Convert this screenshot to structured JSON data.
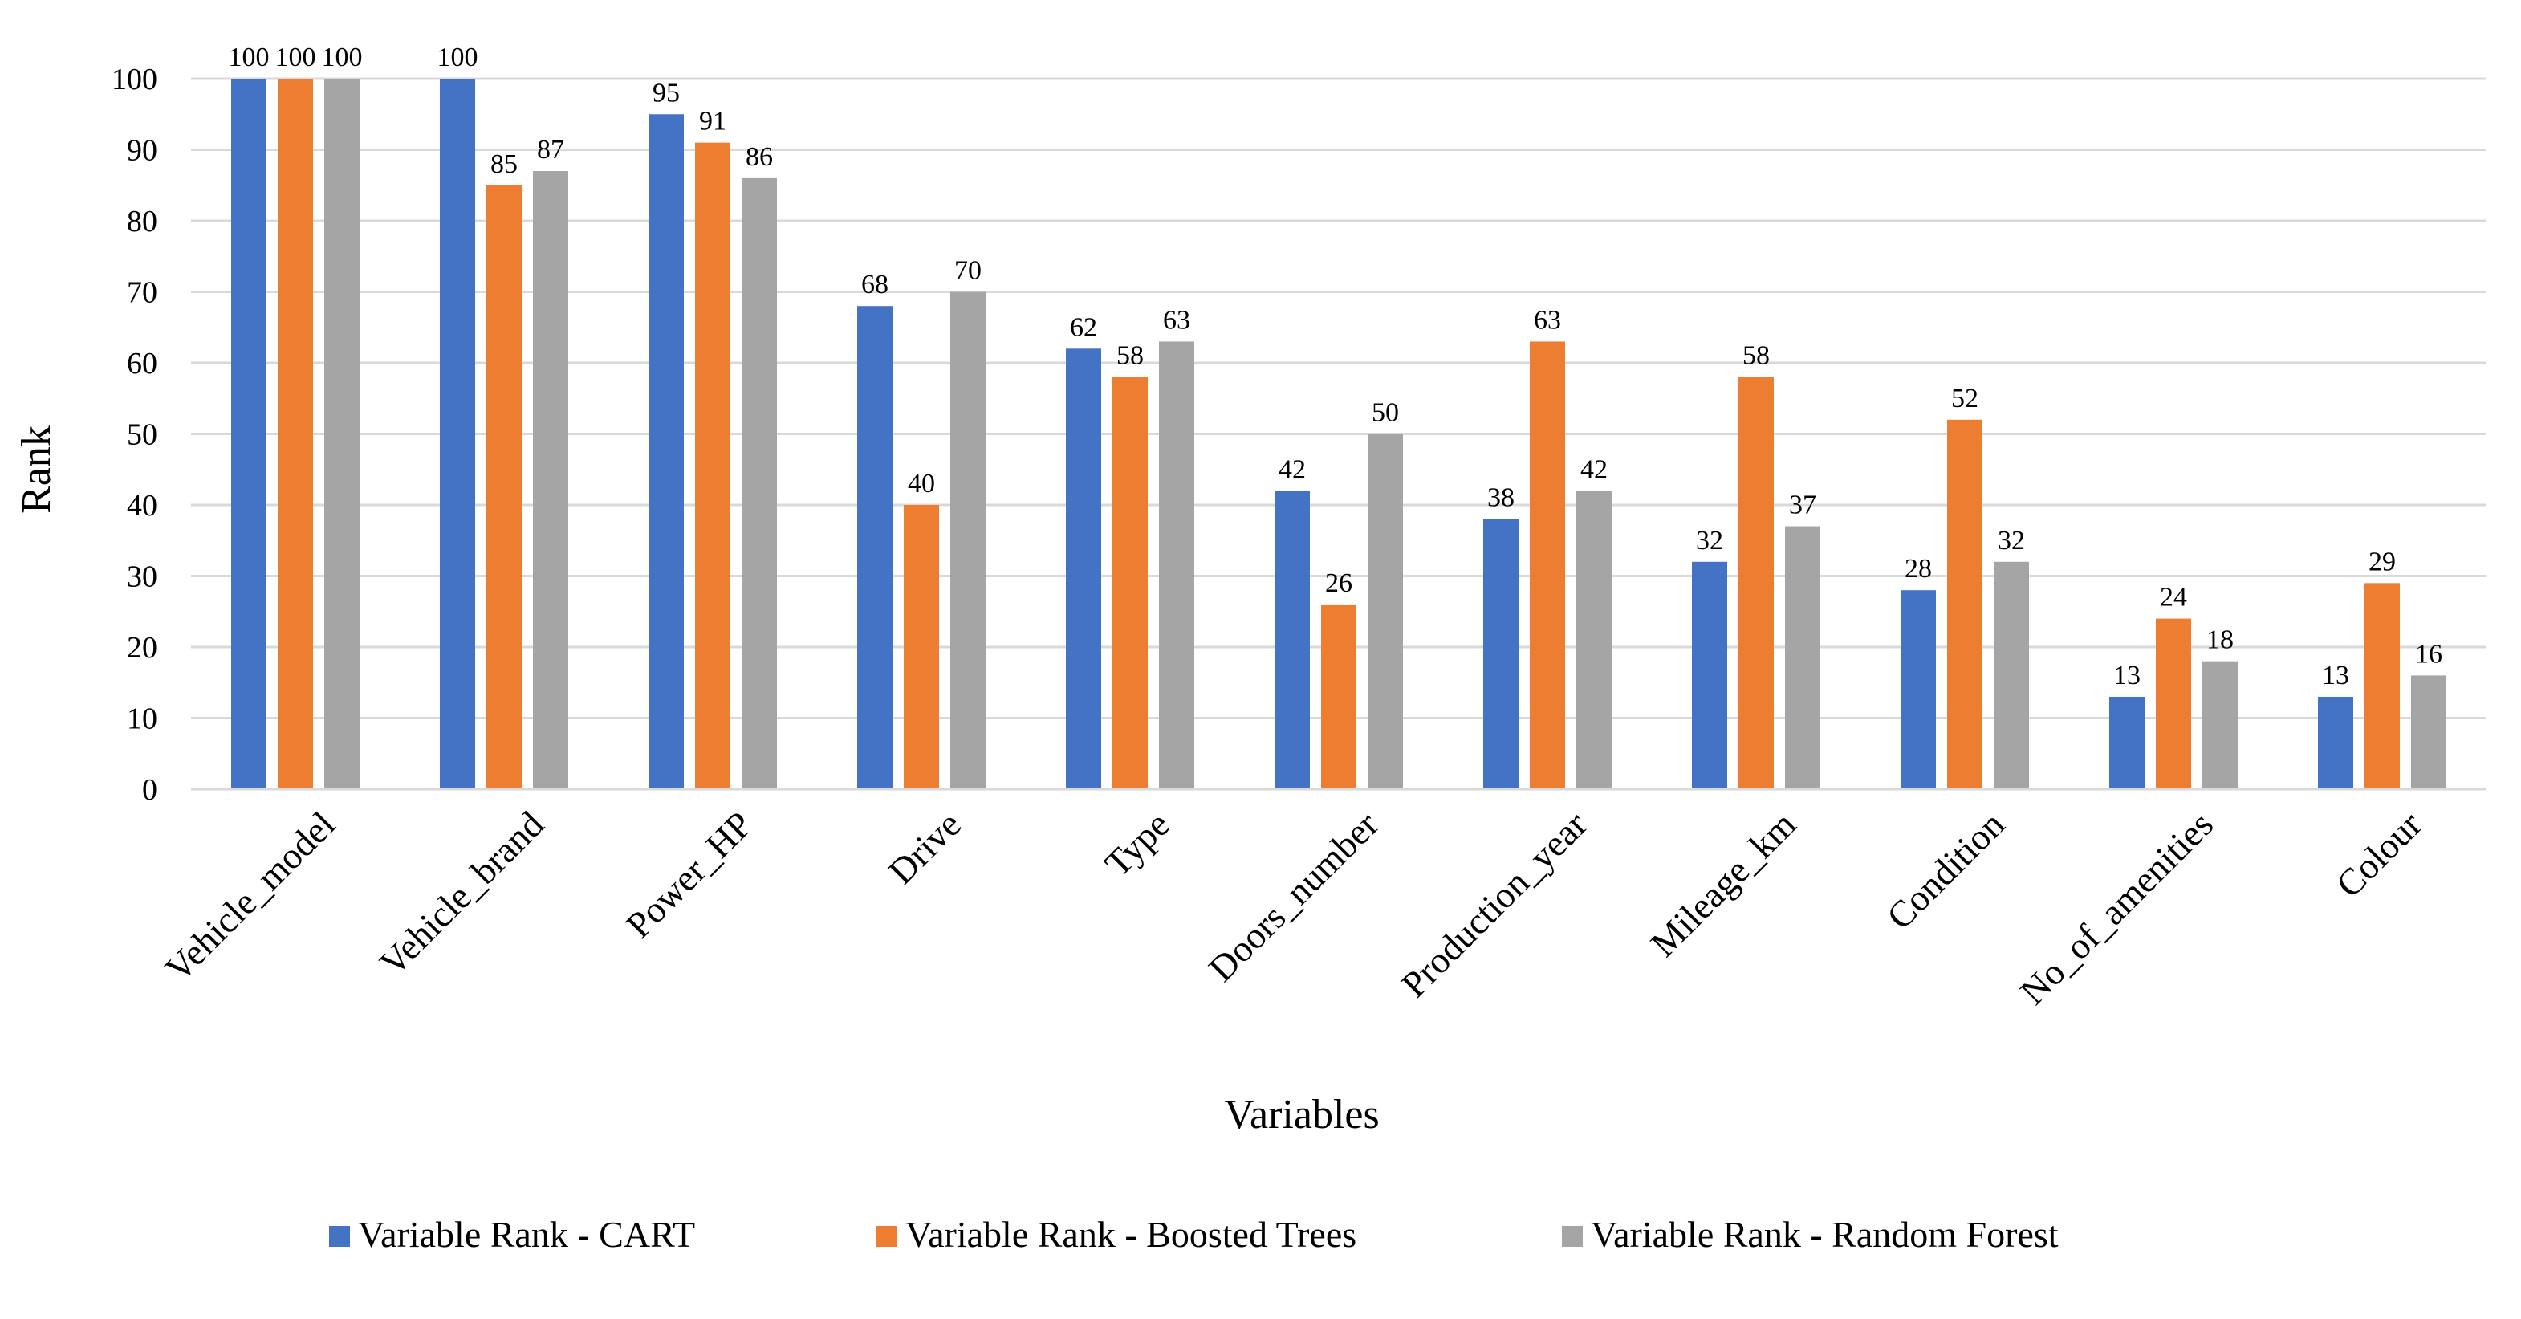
{
  "chart_data": {
    "type": "bar",
    "title": "",
    "xlabel": "Variables",
    "ylabel": "Rank",
    "ylim": [
      0,
      100
    ],
    "yticks": [
      0,
      10,
      20,
      30,
      40,
      50,
      60,
      70,
      80,
      90,
      100
    ],
    "grid": true,
    "legend_position": "bottom",
    "categories": [
      "Vehicle_model",
      "Vehicle_brand",
      "Power_HP",
      "Drive",
      "Type",
      "Doors_number",
      "Production_year",
      "Mileage_km",
      "Condition",
      "No_of_amenities",
      "Colour"
    ],
    "series": [
      {
        "name": "Variable Rank - CART",
        "color": "#4472C4",
        "values": [
          100,
          100,
          95,
          68,
          62,
          42,
          38,
          32,
          28,
          13,
          13
        ]
      },
      {
        "name": "Variable Rank - Boosted Trees",
        "color": "#ED7D31",
        "values": [
          100,
          85,
          91,
          40,
          58,
          26,
          63,
          58,
          52,
          24,
          29
        ]
      },
      {
        "name": "Variable Rank - Random Forest",
        "color": "#A5A5A5",
        "values": [
          100,
          87,
          86,
          70,
          63,
          50,
          42,
          37,
          32,
          18,
          16
        ]
      }
    ]
  }
}
